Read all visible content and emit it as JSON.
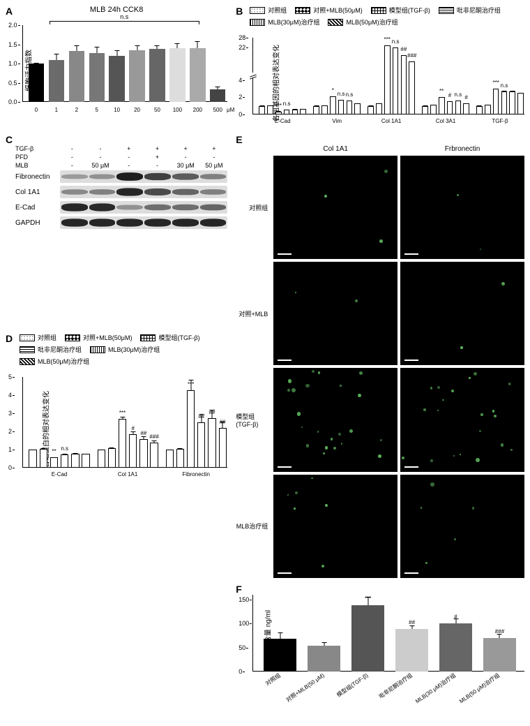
{
  "panelA": {
    "label": "A",
    "title": "MLB 24h CCK8",
    "ylabel": "细胞活力指数",
    "ymax": 2.0,
    "yticks": [
      0,
      0.5,
      1.0,
      1.5,
      2.0
    ],
    "ns_label": "n.s",
    "bars": [
      {
        "x": "0",
        "v": 1.0,
        "err": 0.02,
        "c": "#000000"
      },
      {
        "x": "1",
        "v": 1.1,
        "err": 0.15,
        "c": "#6b6b6b"
      },
      {
        "x": "2",
        "v": 1.32,
        "err": 0.15,
        "c": "#888888"
      },
      {
        "x": "5",
        "v": 1.28,
        "err": 0.15,
        "c": "#777777"
      },
      {
        "x": "10",
        "v": 1.2,
        "err": 0.15,
        "c": "#555555"
      },
      {
        "x": "20",
        "v": 1.35,
        "err": 0.12,
        "c": "#999999"
      },
      {
        "x": "50",
        "v": 1.38,
        "err": 0.1,
        "c": "#666666"
      },
      {
        "x": "100",
        "v": 1.4,
        "err": 0.12,
        "c": "#dddddd"
      },
      {
        "x": "200",
        "v": 1.4,
        "err": 0.18,
        "c": "#aaaaaa"
      },
      {
        "x": "500",
        "v": 0.32,
        "err": 0.08,
        "c": "#444444"
      }
    ],
    "xunit": "μM"
  },
  "panelB": {
    "label": "B",
    "ylabel": "各组基因的相对表达变化",
    "ymax": 28,
    "yticks": [
      0,
      2,
      4,
      22,
      28
    ],
    "legend": [
      {
        "name": "对照组",
        "hatch": "h-dots"
      },
      {
        "name": "对照+MLB(50μM)",
        "hatch": "h-check"
      },
      {
        "name": "模型组(TGF-β)",
        "hatch": "h-grid"
      },
      {
        "name": "吡非尼酮治疗组",
        "hatch": "h-hstripe"
      },
      {
        "name": "MLB(30μM)治疗组",
        "hatch": "h-vstripe"
      },
      {
        "name": "MLB(50μM)治疗组",
        "hatch": "h-diag"
      }
    ],
    "groups": [
      {
        "name": "E-Cad",
        "bars": [
          {
            "v": 1,
            "s": ""
          },
          {
            "v": 1.05,
            "s": ""
          },
          {
            "v": 0.35,
            "s": "***"
          },
          {
            "v": 0.55,
            "s": "n.s"
          },
          {
            "v": 0.6,
            "s": ""
          },
          {
            "v": 0.65,
            "s": ""
          }
        ]
      },
      {
        "name": "Vim",
        "bars": [
          {
            "v": 1,
            "s": ""
          },
          {
            "v": 1.05,
            "s": ""
          },
          {
            "v": 2.1,
            "s": "*"
          },
          {
            "v": 1.7,
            "s": "n.s"
          },
          {
            "v": 1.6,
            "s": "n.s"
          },
          {
            "v": 1.3,
            "s": ""
          }
        ]
      },
      {
        "name": "Col 1A1",
        "bars": [
          {
            "v": 1,
            "s": ""
          },
          {
            "v": 1.3,
            "s": ""
          },
          {
            "v": 23,
            "s": "***"
          },
          {
            "v": 22,
            "s": "n.s"
          },
          {
            "v": 17,
            "s": "##"
          },
          {
            "v": 13,
            "s": "###"
          }
        ]
      },
      {
        "name": "Col 3A1",
        "bars": [
          {
            "v": 1,
            "s": ""
          },
          {
            "v": 1.1,
            "s": ""
          },
          {
            "v": 2.0,
            "s": "**"
          },
          {
            "v": 1.5,
            "s": "#"
          },
          {
            "v": 1.6,
            "s": "n.s"
          },
          {
            "v": 1.3,
            "s": "#"
          }
        ]
      },
      {
        "name": "TGF-β",
        "bars": [
          {
            "v": 1,
            "s": ""
          },
          {
            "v": 1.1,
            "s": ""
          },
          {
            "v": 3.0,
            "s": "***"
          },
          {
            "v": 2.7,
            "s": "n.s"
          },
          {
            "v": 2.7,
            "s": ""
          },
          {
            "v": 2.5,
            "s": ""
          }
        ]
      }
    ]
  },
  "panelC": {
    "label": "C",
    "header_rows": [
      {
        "name": "TGF-β",
        "vals": [
          "-",
          "-",
          "+",
          "+",
          "+",
          "+"
        ]
      },
      {
        "name": "PFD",
        "vals": [
          "-",
          "-",
          "-",
          "+",
          "-",
          "-"
        ]
      },
      {
        "name": "MLB",
        "vals": [
          "-",
          "50 μM",
          "-",
          "-",
          "30 μM",
          "50 μM"
        ]
      }
    ],
    "bands": [
      {
        "name": "Fibronectin",
        "int": [
          0.25,
          0.3,
          0.95,
          0.75,
          0.6,
          0.4
        ]
      },
      {
        "name": "Col 1A1",
        "int": [
          0.35,
          0.4,
          0.9,
          0.7,
          0.55,
          0.4
        ]
      },
      {
        "name": "E-Cad",
        "int": [
          0.9,
          0.88,
          0.3,
          0.5,
          0.5,
          0.55
        ]
      },
      {
        "name": "GAPDH",
        "int": [
          0.9,
          0.9,
          0.9,
          0.9,
          0.9,
          0.9
        ]
      }
    ]
  },
  "panelD": {
    "label": "D",
    "ylabel": "各组蛋白的相对表达变化",
    "ymax": 5,
    "yticks": [
      0,
      1,
      2,
      3,
      4,
      5
    ],
    "legend": [
      {
        "name": "对照组",
        "hatch": "h-dots"
      },
      {
        "name": "对照+MLB(50μM)",
        "hatch": "h-check"
      },
      {
        "name": "模型组(TGF-β)",
        "hatch": "h-grid"
      },
      {
        "name": "吡非尼酮治疗组",
        "hatch": "h-hstripe"
      },
      {
        "name": "MLB(30μM)治疗组",
        "hatch": "h-vstripe"
      },
      {
        "name": "MLB(50μM)治疗组",
        "hatch": "h-diag"
      }
    ],
    "groups": [
      {
        "name": "E-Cad",
        "bars": [
          {
            "v": 1,
            "s": "",
            "e": 0.05
          },
          {
            "v": 1.05,
            "s": "",
            "e": 0.08
          },
          {
            "v": 0.6,
            "s": "**",
            "e": 0.05
          },
          {
            "v": 0.75,
            "s": "n.s",
            "e": 0.08
          },
          {
            "v": 0.8,
            "s": "",
            "e": 0.08
          },
          {
            "v": 0.78,
            "s": "",
            "e": 0.05
          }
        ]
      },
      {
        "name": "Col 1A1",
        "bars": [
          {
            "v": 1,
            "s": "",
            "e": 0.05
          },
          {
            "v": 1.1,
            "s": "",
            "e": 0.08
          },
          {
            "v": 2.7,
            "s": "***",
            "e": 0.15
          },
          {
            "v": 1.85,
            "s": "#",
            "e": 0.2
          },
          {
            "v": 1.6,
            "s": "##",
            "e": 0.2
          },
          {
            "v": 1.4,
            "s": "###",
            "e": 0.15
          }
        ]
      },
      {
        "name": "Fibronectin",
        "bars": [
          {
            "v": 1,
            "s": "",
            "e": 0.05
          },
          {
            "v": 1.05,
            "s": "",
            "e": 0.08
          },
          {
            "v": 4.3,
            "s": "***",
            "e": 0.6
          },
          {
            "v": 2.5,
            "s": "##",
            "e": 0.5
          },
          {
            "v": 2.75,
            "s": "##",
            "e": 0.5
          },
          {
            "v": 2.2,
            "s": "##",
            "e": 0.4
          }
        ]
      }
    ]
  },
  "panelE": {
    "label": "E",
    "cols": [
      "Col 1A1",
      "Frbronectin"
    ],
    "rows": [
      "对照组",
      "对照+MLB",
      "模型组(TGF-β)",
      "MLB治疗组"
    ],
    "intensity": [
      [
        0.08,
        0.06
      ],
      [
        0.05,
        0.04
      ],
      [
        0.55,
        0.5
      ],
      [
        0.15,
        0.12
      ]
    ],
    "color": "#5fb85f"
  },
  "panelF": {
    "label": "F",
    "ylabel": "TGF-β的含量 ng/ml",
    "ymax": 160,
    "yticks": [
      0,
      50,
      100,
      150
    ],
    "bars": [
      {
        "x": "对照组",
        "v": 68,
        "e": 14,
        "c": "#000000",
        "s": ""
      },
      {
        "x": "对照+MLB(50 μM)",
        "v": 53,
        "e": 8,
        "c": "#888888",
        "s": ""
      },
      {
        "x": "模型组(TGF-β)",
        "v": 138,
        "e": 18,
        "c": "#555555",
        "s": "***"
      },
      {
        "x": "吡非尼酮治疗组",
        "v": 88,
        "e": 8,
        "c": "#cccccc",
        "s": "##"
      },
      {
        "x": "MLB(30 μM)治疗组",
        "v": 100,
        "e": 10,
        "c": "#666666",
        "s": "#"
      },
      {
        "x": "MLB(50 μM)治疗组",
        "v": 70,
        "e": 8,
        "c": "#999999",
        "s": "###"
      }
    ]
  }
}
